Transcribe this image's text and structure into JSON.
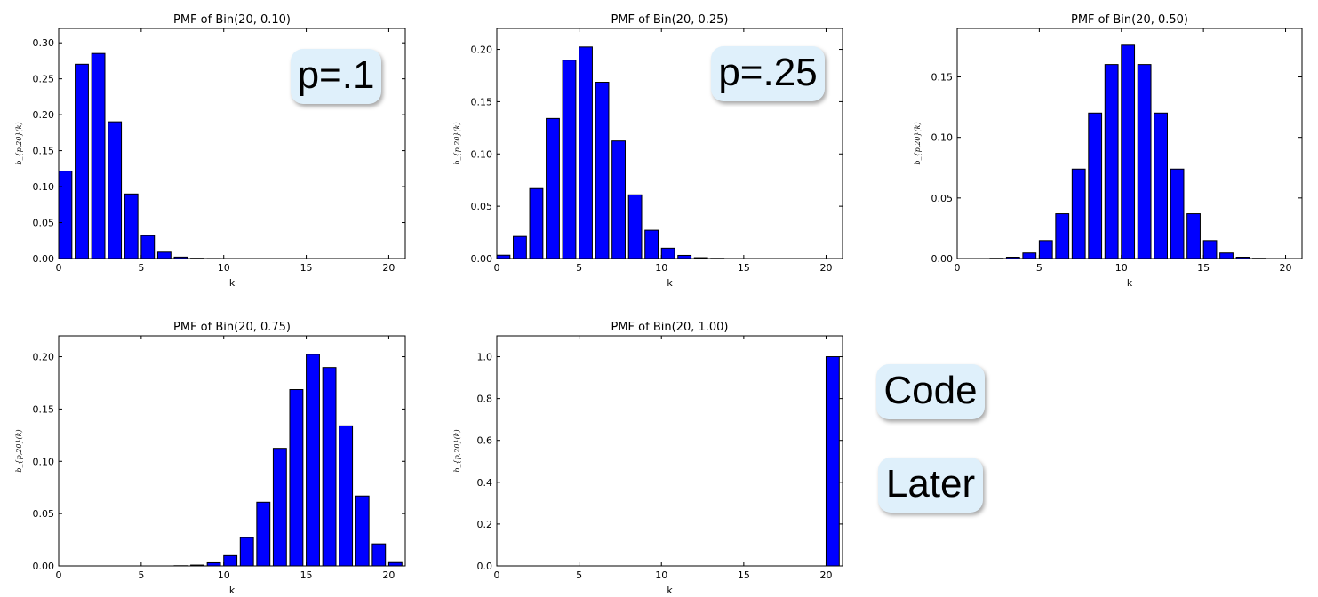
{
  "chart_data": [
    {
      "type": "bar",
      "title": "PMF of Bin(20, 0.10)",
      "xlabel": "k",
      "ylabel": "b_{p,20}(k)",
      "xlim": [
        0,
        21
      ],
      "ylim": [
        0,
        0.32
      ],
      "xticks": [
        "0",
        "5",
        "10",
        "15",
        "20"
      ],
      "yticks": [
        "0.00",
        "0.05",
        "0.10",
        "0.15",
        "0.20",
        "0.25",
        "0.30"
      ],
      "categories": [
        0,
        1,
        2,
        3,
        4,
        5,
        6,
        7,
        8,
        9,
        10,
        11,
        12,
        13,
        14,
        15,
        16,
        17,
        18,
        19,
        20
      ],
      "values": [
        0.1216,
        0.2702,
        0.2852,
        0.1901,
        0.0898,
        0.0319,
        0.0089,
        0.002,
        0.0004,
        0.0001,
        0,
        0,
        0,
        0,
        0,
        0,
        0,
        0,
        0,
        0,
        0
      ],
      "bar_color": "#0000ff"
    },
    {
      "type": "bar",
      "title": "PMF of Bin(20, 0.25)",
      "xlabel": "k",
      "ylabel": "b_{p,20}(k)",
      "xlim": [
        0,
        21
      ],
      "ylim": [
        0,
        0.22
      ],
      "xticks": [
        "0",
        "5",
        "10",
        "15",
        "20"
      ],
      "yticks": [
        "0.00",
        "0.05",
        "0.10",
        "0.15",
        "0.20"
      ],
      "categories": [
        0,
        1,
        2,
        3,
        4,
        5,
        6,
        7,
        8,
        9,
        10,
        11,
        12,
        13,
        14,
        15,
        16,
        17,
        18,
        19,
        20
      ],
      "values": [
        0.0032,
        0.0211,
        0.0669,
        0.1339,
        0.1897,
        0.2023,
        0.1686,
        0.1124,
        0.0609,
        0.0271,
        0.0099,
        0.003,
        0.0008,
        0.0002,
        0,
        0,
        0,
        0,
        0,
        0,
        0
      ],
      "bar_color": "#0000ff"
    },
    {
      "type": "bar",
      "title": "PMF of Bin(20, 0.50)",
      "xlabel": "k",
      "ylabel": "b_{p,20}(k)",
      "xlim": [
        0,
        21
      ],
      "ylim": [
        0,
        0.19
      ],
      "xticks": [
        "0",
        "5",
        "10",
        "15",
        "20"
      ],
      "yticks": [
        "0.00",
        "0.05",
        "0.10",
        "0.15"
      ],
      "categories": [
        0,
        1,
        2,
        3,
        4,
        5,
        6,
        7,
        8,
        9,
        10,
        11,
        12,
        13,
        14,
        15,
        16,
        17,
        18,
        19,
        20
      ],
      "values": [
        0,
        0,
        0.0002,
        0.0011,
        0.0046,
        0.0148,
        0.037,
        0.0739,
        0.1201,
        0.1602,
        0.1762,
        0.1602,
        0.1201,
        0.0739,
        0.037,
        0.0148,
        0.0046,
        0.0011,
        0.0002,
        0,
        0
      ],
      "bar_color": "#0000ff"
    },
    {
      "type": "bar",
      "title": "PMF of Bin(20, 0.75)",
      "xlabel": "k",
      "ylabel": "b_{p,20}(k)",
      "xlim": [
        0,
        21
      ],
      "ylim": [
        0,
        0.22
      ],
      "xticks": [
        "0",
        "5",
        "10",
        "15",
        "20"
      ],
      "yticks": [
        "0.00",
        "0.05",
        "0.10",
        "0.15",
        "0.20"
      ],
      "categories": [
        0,
        1,
        2,
        3,
        4,
        5,
        6,
        7,
        8,
        9,
        10,
        11,
        12,
        13,
        14,
        15,
        16,
        17,
        18,
        19,
        20
      ],
      "values": [
        0,
        0,
        0,
        0,
        0,
        0,
        0,
        0.0002,
        0.0008,
        0.003,
        0.0099,
        0.0271,
        0.0609,
        0.1124,
        0.1686,
        0.2023,
        0.1897,
        0.1339,
        0.0669,
        0.0211,
        0.0032
      ],
      "bar_color": "#0000ff"
    },
    {
      "type": "bar",
      "title": "PMF of Bin(20, 1.00)",
      "xlabel": "k",
      "ylabel": "b_{p,20}(k)",
      "xlim": [
        0,
        21
      ],
      "ylim": [
        0,
        1.1
      ],
      "xticks": [
        "0",
        "5",
        "10",
        "15",
        "20"
      ],
      "yticks": [
        "0.0",
        "0.2",
        "0.4",
        "0.6",
        "0.8",
        "1.0"
      ],
      "categories": [
        0,
        1,
        2,
        3,
        4,
        5,
        6,
        7,
        8,
        9,
        10,
        11,
        12,
        13,
        14,
        15,
        16,
        17,
        18,
        19,
        20
      ],
      "values": [
        0,
        0,
        0,
        0,
        0,
        0,
        0,
        0,
        0,
        0,
        0,
        0,
        0,
        0,
        0,
        0,
        0,
        0,
        0,
        0,
        1.0
      ],
      "bar_color": "#0000ff"
    }
  ],
  "callouts": {
    "p1": "p=.1",
    "p25": "p=.25",
    "code": "Code",
    "later": "Later"
  }
}
